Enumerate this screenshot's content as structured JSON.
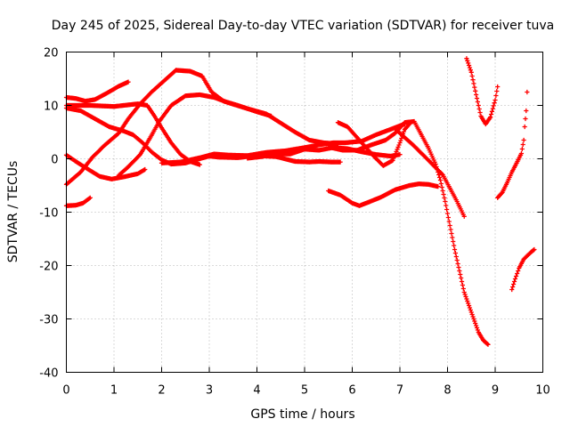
{
  "chart_data": {
    "type": "scatter",
    "title": "Day 245 of 2025, Sidereal Day-to-day VTEC variation (SDTVAR) for receiver tuva",
    "xlabel": "GPS time / hours",
    "ylabel": "SDTVAR / TECUs",
    "xlim": [
      0,
      10
    ],
    "ylim": [
      -40,
      20
    ],
    "xticks": [
      0,
      1,
      2,
      3,
      4,
      5,
      6,
      7,
      8,
      9,
      10
    ],
    "yticks": [
      -40,
      -30,
      -20,
      -10,
      0,
      10,
      20
    ],
    "grid": true,
    "marker": "+",
    "color": "#ff0000",
    "series": [
      {
        "name": "arc-1",
        "points": [
          [
            0,
            -8.8
          ],
          [
            0.2,
            -8.7
          ],
          [
            0.35,
            -8.3
          ],
          [
            0.5,
            -7.3
          ]
        ]
      },
      {
        "name": "arc-2",
        "points": [
          [
            0,
            -4.8
          ],
          [
            0.3,
            -2.5
          ],
          [
            0.55,
            0.3
          ],
          [
            0.8,
            2.5
          ],
          [
            1.1,
            4.8
          ],
          [
            1.3,
            7.5
          ],
          [
            1.55,
            10.3
          ],
          [
            1.8,
            12.6
          ],
          [
            2.1,
            15
          ],
          [
            2.3,
            16.6
          ],
          [
            2.6,
            16.4
          ],
          [
            2.85,
            15.5
          ],
          [
            3.05,
            12.5
          ],
          [
            3.3,
            10.8
          ],
          [
            3.6,
            10
          ],
          [
            4.0,
            8.8
          ],
          [
            4.3,
            8
          ]
        ]
      },
      {
        "name": "arc-3",
        "points": [
          [
            0,
            0.7
          ],
          [
            0.25,
            -0.8
          ],
          [
            0.5,
            -2.2
          ],
          [
            0.7,
            -3.3
          ],
          [
            0.95,
            -3.8
          ],
          [
            1.2,
            -3.4
          ],
          [
            1.5,
            -2.8
          ],
          [
            1.65,
            -2
          ]
        ]
      },
      {
        "name": "arc-4",
        "points": [
          [
            0,
            11.5
          ],
          [
            0.2,
            11.3
          ],
          [
            0.4,
            10.8
          ],
          [
            0.6,
            11.1
          ],
          [
            0.85,
            12.3
          ],
          [
            1.1,
            13.6
          ],
          [
            1.3,
            14.4
          ]
        ]
      },
      {
        "name": "arc-5",
        "points": [
          [
            0,
            10
          ],
          [
            0.5,
            10
          ],
          [
            1.0,
            9.8
          ],
          [
            1.5,
            10.3
          ],
          [
            1.7,
            10
          ],
          [
            1.85,
            8
          ],
          [
            2.0,
            5.8
          ],
          [
            2.2,
            3
          ],
          [
            2.4,
            0.8
          ],
          [
            2.6,
            -0.5
          ],
          [
            2.8,
            -1.1
          ]
        ]
      },
      {
        "name": "arc-6",
        "points": [
          [
            0,
            9.5
          ],
          [
            0.3,
            9
          ],
          [
            0.6,
            7.5
          ],
          [
            0.9,
            6
          ],
          [
            1.2,
            5.2
          ],
          [
            1.4,
            4.5
          ],
          [
            1.6,
            3
          ],
          [
            1.8,
            1.2
          ],
          [
            2.0,
            -0.2
          ],
          [
            2.2,
            -1
          ],
          [
            2.5,
            -0.8
          ],
          [
            2.8,
            0
          ],
          [
            3.0,
            0.5
          ],
          [
            3.2,
            0.3
          ],
          [
            3.6,
            0.2
          ],
          [
            4.0,
            0.6
          ],
          [
            4.4,
            0.4
          ],
          [
            4.8,
            -0.5
          ],
          [
            5.1,
            -0.6
          ],
          [
            5.3,
            -0.5
          ],
          [
            5.55,
            -0.6
          ],
          [
            5.75,
            -0.6
          ]
        ]
      },
      {
        "name": "arc-7",
        "points": [
          [
            1.1,
            -3.1
          ],
          [
            1.3,
            -1.5
          ],
          [
            1.55,
            0.8
          ],
          [
            1.75,
            3.8
          ],
          [
            1.95,
            7
          ],
          [
            2.2,
            10
          ],
          [
            2.5,
            11.8
          ],
          [
            2.8,
            12
          ],
          [
            3.1,
            11.5
          ],
          [
            3.4,
            10.5
          ],
          [
            3.8,
            9.4
          ],
          [
            4.2,
            8.4
          ],
          [
            4.5,
            6.7
          ],
          [
            4.8,
            5
          ],
          [
            5.1,
            3.5
          ],
          [
            5.4,
            3
          ],
          [
            5.7,
            2.8
          ]
        ]
      },
      {
        "name": "arc-8",
        "points": [
          [
            2.0,
            -0.8
          ],
          [
            2.4,
            -0.6
          ],
          [
            2.8,
            0.2
          ],
          [
            3.1,
            0.9
          ],
          [
            3.4,
            0.7
          ],
          [
            3.8,
            0.6
          ],
          [
            4.2,
            1.2
          ],
          [
            4.6,
            1.5
          ],
          [
            5.0,
            2.1
          ],
          [
            5.3,
            2.6
          ],
          [
            5.6,
            3
          ],
          [
            5.85,
            3
          ],
          [
            6.2,
            3.3
          ],
          [
            6.5,
            4.5
          ],
          [
            6.8,
            5.5
          ],
          [
            7.0,
            6.2
          ],
          [
            7.1,
            6.5
          ]
        ]
      },
      {
        "name": "arc-9",
        "points": [
          [
            3.8,
            0.1
          ],
          [
            4.1,
            0.4
          ],
          [
            4.4,
            0.9
          ],
          [
            4.7,
            0.9
          ],
          [
            5.0,
            1.8
          ],
          [
            5.3,
            1.6
          ],
          [
            5.6,
            2.1
          ],
          [
            5.9,
            1.9
          ],
          [
            6.2,
            1.3
          ],
          [
            6.5,
            0.8
          ],
          [
            6.8,
            0.5
          ],
          [
            7.0,
            0.8
          ]
        ]
      },
      {
        "name": "arc-10",
        "points": [
          [
            5.7,
            6.8
          ],
          [
            5.9,
            6
          ],
          [
            6.05,
            4.5
          ],
          [
            6.25,
            2.5
          ],
          [
            6.45,
            0.5
          ],
          [
            6.65,
            -1.3
          ],
          [
            6.85,
            -0.3
          ],
          [
            7.0,
            3
          ],
          [
            7.1,
            5.5
          ],
          [
            7.2,
            6.5
          ]
        ]
      },
      {
        "name": "arc-11",
        "points": [
          [
            5.5,
            2.2
          ],
          [
            5.8,
            1.6
          ],
          [
            6.1,
            1.6
          ],
          [
            6.4,
            2.6
          ],
          [
            6.7,
            3.5
          ],
          [
            6.9,
            4.8
          ],
          [
            7.1,
            6.8
          ],
          [
            7.3,
            7
          ],
          [
            7.45,
            4.5
          ],
          [
            7.6,
            2
          ],
          [
            7.75,
            -1
          ],
          [
            7.85,
            -4
          ],
          [
            7.95,
            -8
          ],
          [
            8.05,
            -12.5
          ],
          [
            8.15,
            -17
          ],
          [
            8.25,
            -21
          ],
          [
            8.35,
            -25
          ],
          [
            8.45,
            -27.5
          ],
          [
            8.55,
            -30
          ],
          [
            8.65,
            -32.5
          ],
          [
            8.75,
            -34
          ],
          [
            8.85,
            -34.8
          ]
        ]
      },
      {
        "name": "arc-12",
        "points": [
          [
            6.9,
            5.6
          ],
          [
            7.1,
            4
          ],
          [
            7.3,
            2.4
          ],
          [
            7.5,
            0.6
          ],
          [
            7.7,
            -1.2
          ],
          [
            7.9,
            -3
          ],
          [
            8.05,
            -5.5
          ],
          [
            8.2,
            -8
          ],
          [
            8.35,
            -10.8
          ]
        ]
      },
      {
        "name": "arc-13",
        "points": [
          [
            5.5,
            -6
          ],
          [
            5.75,
            -6.8
          ],
          [
            6.0,
            -8.3
          ],
          [
            6.15,
            -8.8
          ],
          [
            6.35,
            -8.1
          ],
          [
            6.6,
            -7.2
          ],
          [
            6.9,
            -5.8
          ],
          [
            7.2,
            -5
          ],
          [
            7.4,
            -4.7
          ],
          [
            7.6,
            -4.8
          ],
          [
            7.8,
            -5.2
          ]
        ]
      },
      {
        "name": "arc-14",
        "points": [
          [
            8.4,
            18.8
          ],
          [
            8.5,
            16.2
          ],
          [
            8.6,
            12
          ],
          [
            8.7,
            8
          ],
          [
            8.8,
            6.5
          ],
          [
            8.9,
            7.8
          ],
          [
            9.0,
            11
          ],
          [
            9.05,
            13.5
          ]
        ]
      },
      {
        "name": "arc-15",
        "points": [
          [
            9.05,
            -7.3
          ],
          [
            9.15,
            -6.3
          ],
          [
            9.25,
            -4.5
          ],
          [
            9.35,
            -2.5
          ],
          [
            9.45,
            -0.8
          ],
          [
            9.55,
            1
          ],
          [
            9.6,
            3.5
          ],
          [
            9.62,
            6
          ],
          [
            9.65,
            9
          ],
          [
            9.67,
            12.5
          ]
        ]
      },
      {
        "name": "arc-16",
        "points": [
          [
            9.35,
            -24.5
          ],
          [
            9.42,
            -22.5
          ],
          [
            9.5,
            -20.5
          ],
          [
            9.6,
            -18.8
          ],
          [
            9.75,
            -17.5
          ],
          [
            9.82,
            -17
          ]
        ]
      }
    ]
  }
}
